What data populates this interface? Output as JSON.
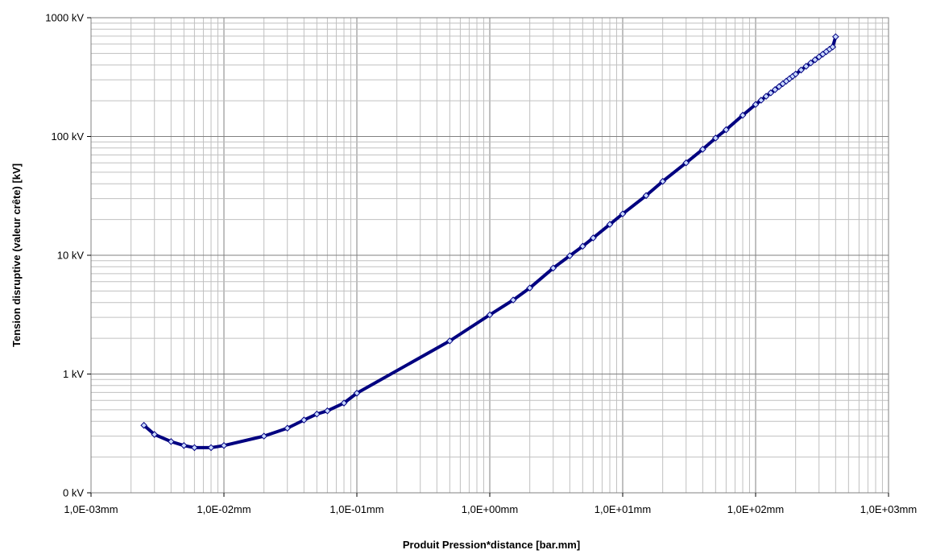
{
  "chart_data": {
    "type": "line",
    "title": "",
    "xlabel": "Produit Pression*distance [bar.mm]",
    "ylabel": "Tension disruptive (valeur crête) [kV]",
    "x_scale": "log",
    "y_scale": "log",
    "xlim": [
      0.001,
      1000
    ],
    "ylim": [
      0.1,
      1000
    ],
    "x_tick_values": [
      0.001,
      0.01,
      0.1,
      1,
      10,
      100,
      1000
    ],
    "x_tick_labels": [
      "1,0E-03mm",
      "1,0E-02mm",
      "1,0E-01mm",
      "1,0E+00mm",
      "1,0E+01mm",
      "1,0E+02mm",
      "1,0E+03mm"
    ],
    "y_tick_values": [
      0.1,
      1,
      10,
      100,
      1000
    ],
    "y_tick_labels": [
      "0 kV",
      "1 kV",
      "10 kV",
      "100 kV",
      "1000 kV"
    ],
    "grid": true,
    "line_color": "#000080",
    "marker_fill": "#c8d8ff",
    "series": [
      {
        "x": [
          0.0025,
          0.003,
          0.004,
          0.005,
          0.006,
          0.008,
          0.01,
          0.02,
          0.03,
          0.04,
          0.05,
          0.06,
          0.08,
          0.1,
          0.5,
          1,
          1.5,
          2,
          3,
          4,
          5,
          6,
          8,
          10,
          15,
          20,
          30,
          40,
          50,
          60,
          80,
          100,
          110,
          120,
          130,
          140,
          150,
          160,
          170,
          180,
          190,
          200,
          220,
          240,
          260,
          280,
          300,
          320,
          340,
          360,
          380,
          400
        ],
        "y": [
          0.37,
          0.31,
          0.27,
          0.25,
          0.24,
          0.24,
          0.25,
          0.3,
          0.35,
          0.41,
          0.46,
          0.49,
          0.57,
          0.69,
          1.9,
          3.15,
          4.2,
          5.3,
          7.8,
          9.9,
          11.9,
          14,
          18.2,
          22.3,
          31.8,
          41.9,
          60,
          78,
          97,
          114,
          151,
          186,
          202,
          218,
          233,
          248,
          263,
          278,
          292,
          307,
          321,
          335,
          363,
          390,
          416,
          442,
          468,
          493,
          518,
          543,
          567,
          691
        ]
      }
    ]
  }
}
